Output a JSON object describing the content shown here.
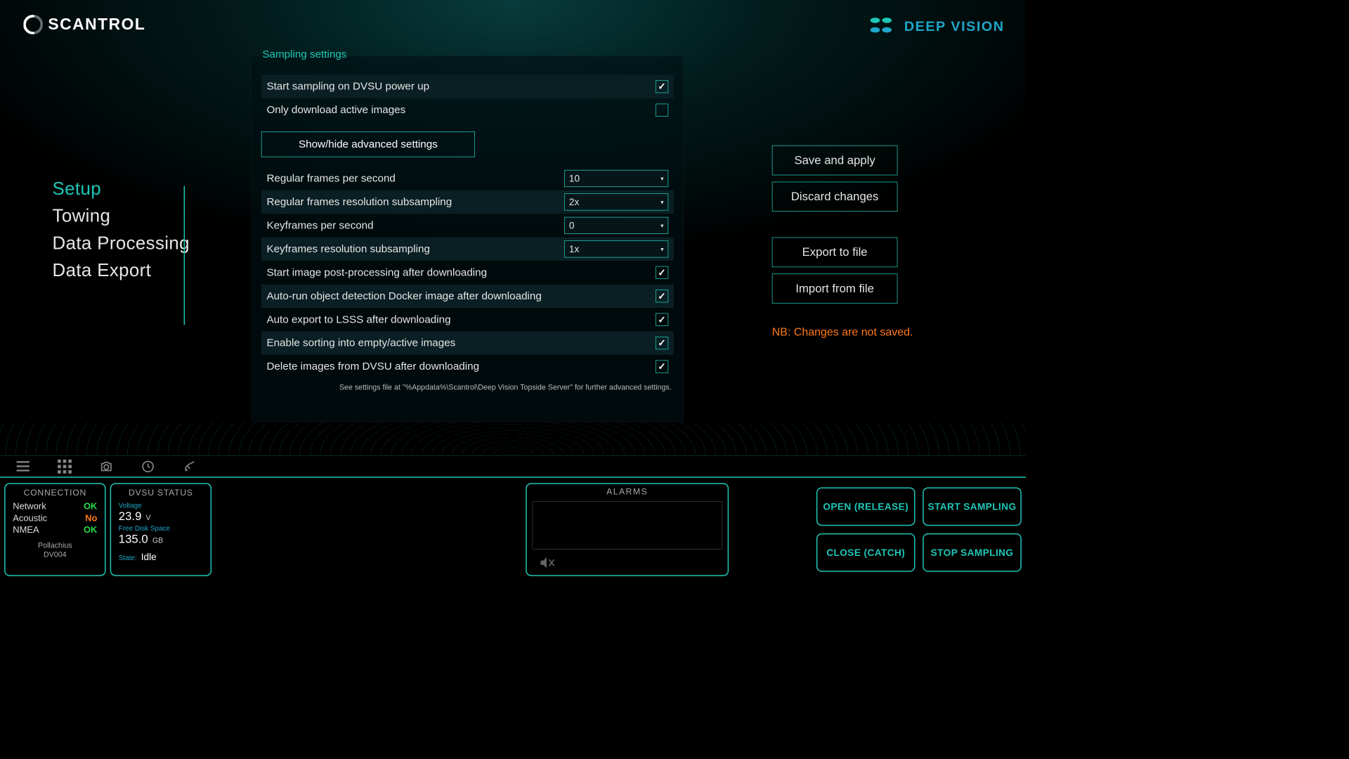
{
  "brand": {
    "left": "SCANTROL",
    "right": "DEEP VISION"
  },
  "nav": {
    "items": [
      "Setup",
      "Towing",
      "Data Processing",
      "Data Export"
    ],
    "activeIndex": 0
  },
  "panel": {
    "title": "Sampling settings",
    "rows_top": [
      {
        "label": "Start sampling on DVSU power up",
        "checked": true,
        "alt": true
      },
      {
        "label": "Only download active images",
        "checked": false,
        "alt": false
      }
    ],
    "adv_button": "Show/hide advanced settings",
    "selects": [
      {
        "label": "Regular frames per second",
        "value": "10",
        "alt": false
      },
      {
        "label": "Regular frames resolution subsampling",
        "value": "2x",
        "alt": true
      },
      {
        "label": "Keyframes per second",
        "value": "0",
        "alt": false
      },
      {
        "label": "Keyframes resolution subsampling",
        "value": "1x",
        "alt": true
      }
    ],
    "rows_bottom": [
      {
        "label": "Start image post-processing after downloading",
        "checked": true,
        "alt": false
      },
      {
        "label": "Auto-run object detection Docker image after downloading",
        "checked": true,
        "alt": true
      },
      {
        "label": "Auto export to LSSS after downloading",
        "checked": true,
        "alt": false
      },
      {
        "label": "Enable sorting into empty/active images",
        "checked": true,
        "alt": true
      },
      {
        "label": "Delete images from DVSU after downloading",
        "checked": true,
        "alt": false
      }
    ],
    "footnote": "See settings file at \"%Appdata%\\Scantrol\\Deep Vision Topside Server\" for further advanced settings."
  },
  "actions": {
    "save": "Save and apply",
    "discard": "Discard changes",
    "export": "Export to file",
    "import": "Import from file",
    "warn": "NB: Changes are not saved."
  },
  "status": {
    "connection": {
      "title": "CONNECTION",
      "rows": [
        {
          "k": "Network",
          "v": "OK",
          "cls": "ok"
        },
        {
          "k": "Acoustic",
          "v": "No",
          "cls": "no"
        },
        {
          "k": "NMEA",
          "v": "OK",
          "cls": "ok"
        }
      ],
      "sub1": "Pollachius",
      "sub2": "DV004"
    },
    "dvsu": {
      "title": "DVSU STATUS",
      "voltage_label": "Voltage",
      "voltage_value": "23.9",
      "voltage_unit": "V",
      "disk_label": "Free Disk Space",
      "disk_value": "135.0",
      "disk_unit": "GB",
      "state_label": "State:",
      "state_value": "Idle"
    },
    "alarms": {
      "title": "ALARMS"
    }
  },
  "big_buttons": {
    "open": "OPEN (RELEASE)",
    "start": "START SAMPLING",
    "close": "CLOSE (CATCH)",
    "stop": "STOP SAMPLING"
  }
}
